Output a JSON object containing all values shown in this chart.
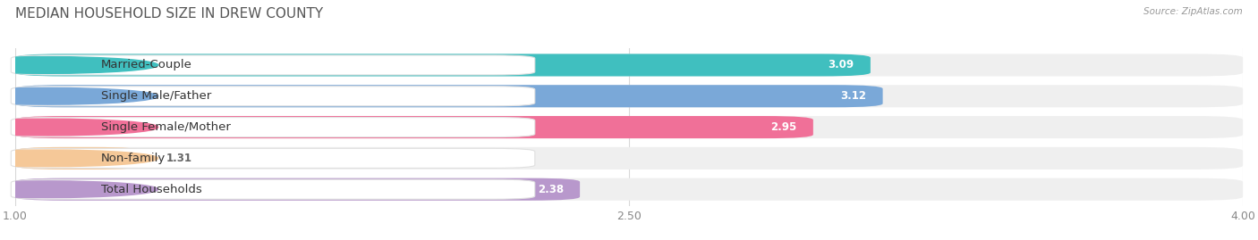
{
  "title": "MEDIAN HOUSEHOLD SIZE IN DREW COUNTY",
  "source": "Source: ZipAtlas.com",
  "categories": [
    "Married-Couple",
    "Single Male/Father",
    "Single Female/Mother",
    "Non-family",
    "Total Households"
  ],
  "values": [
    3.09,
    3.12,
    2.95,
    1.31,
    2.38
  ],
  "bar_colors": [
    "#40bfbf",
    "#7aa8d8",
    "#f07098",
    "#f5c898",
    "#b898cc"
  ],
  "xmin": 1.0,
  "xmax": 4.0,
  "xticks": [
    1.0,
    2.5,
    4.0
  ],
  "xtick_labels": [
    "1.00",
    "2.50",
    "4.00"
  ],
  "background_color": "#ffffff",
  "bar_bg_color": "#efefef",
  "grid_color": "#d8d8d8",
  "title_fontsize": 11,
  "label_fontsize": 9.5,
  "value_fontsize": 8.5
}
